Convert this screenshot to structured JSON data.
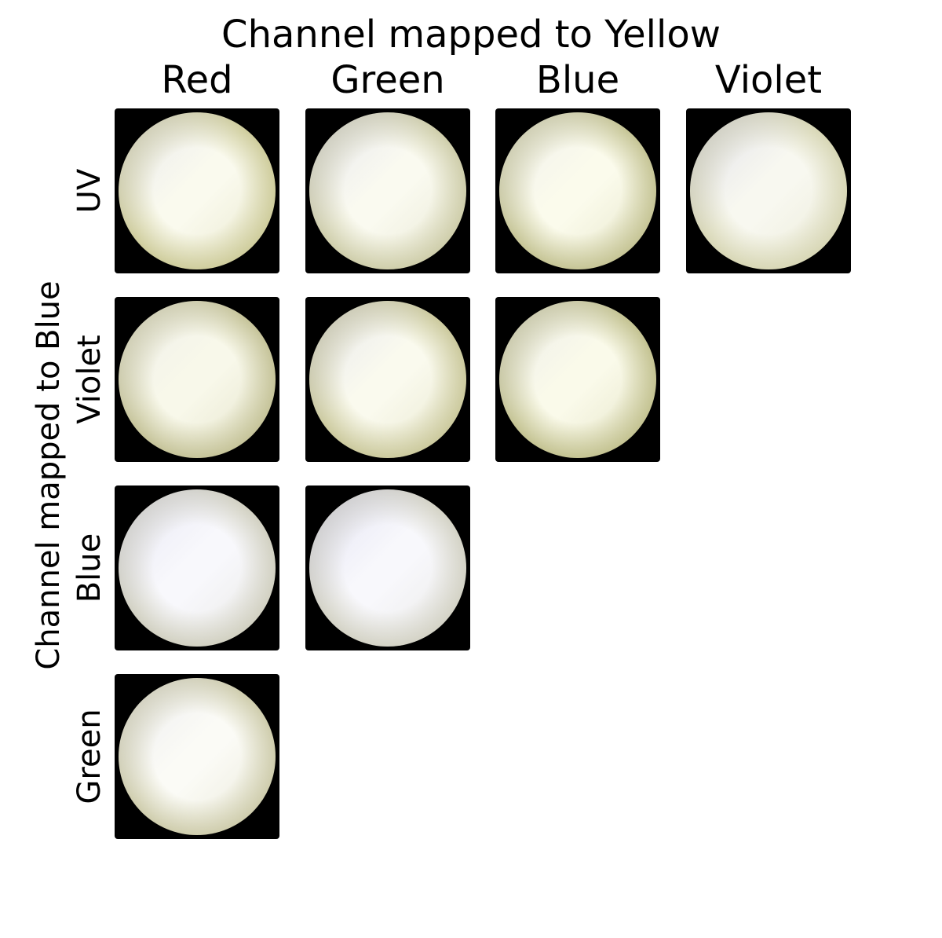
{
  "title": "Channel mapped to Yellow",
  "y_title": "Channel mapped to Blue",
  "columns": [
    {
      "label": "Red"
    },
    {
      "label": "Green"
    },
    {
      "label": "Blue"
    },
    {
      "label": "Violet"
    }
  ],
  "rows": [
    {
      "label": "UV"
    },
    {
      "label": "Violet"
    },
    {
      "label": "Blue"
    },
    {
      "label": "Green"
    }
  ],
  "cells": [
    {
      "row": 0,
      "col": 0,
      "center": "#fafaee",
      "cool": "#d6d6ea",
      "warm": "#cfcd9d"
    },
    {
      "row": 0,
      "col": 1,
      "center": "#fafaf0",
      "cool": "#d3d3ea",
      "warm": "#cfceab"
    },
    {
      "row": 0,
      "col": 2,
      "center": "#fbfbec",
      "cool": "#e2e2ec",
      "warm": "#c6c596"
    },
    {
      "row": 0,
      "col": 3,
      "center": "#f8f8f0",
      "cool": "#c9c9e2",
      "warm": "#d8d7b6"
    },
    {
      "row": 1,
      "col": 0,
      "center": "#f8f8ea",
      "cool": "#e4e4ea",
      "warm": "#c6c49a"
    },
    {
      "row": 1,
      "col": 1,
      "center": "#fafaee",
      "cool": "#d2d2ea",
      "warm": "#ccca9e"
    },
    {
      "row": 1,
      "col": 2,
      "center": "#fafaea",
      "cool": "#dcdce6",
      "warm": "#c4c392"
    },
    {
      "row": 2,
      "col": 0,
      "center": "#f8f8fc",
      "cool": "#d6d6ea",
      "warm": "#d2d1c2"
    },
    {
      "row": 2,
      "col": 1,
      "center": "#f8f8fc",
      "cool": "#cdcde8",
      "warm": "#d4d3c6"
    },
    {
      "row": 3,
      "col": 0,
      "center": "#fbfbf6",
      "cool": "#dcdce6",
      "warm": "#cfcdad"
    }
  ]
}
